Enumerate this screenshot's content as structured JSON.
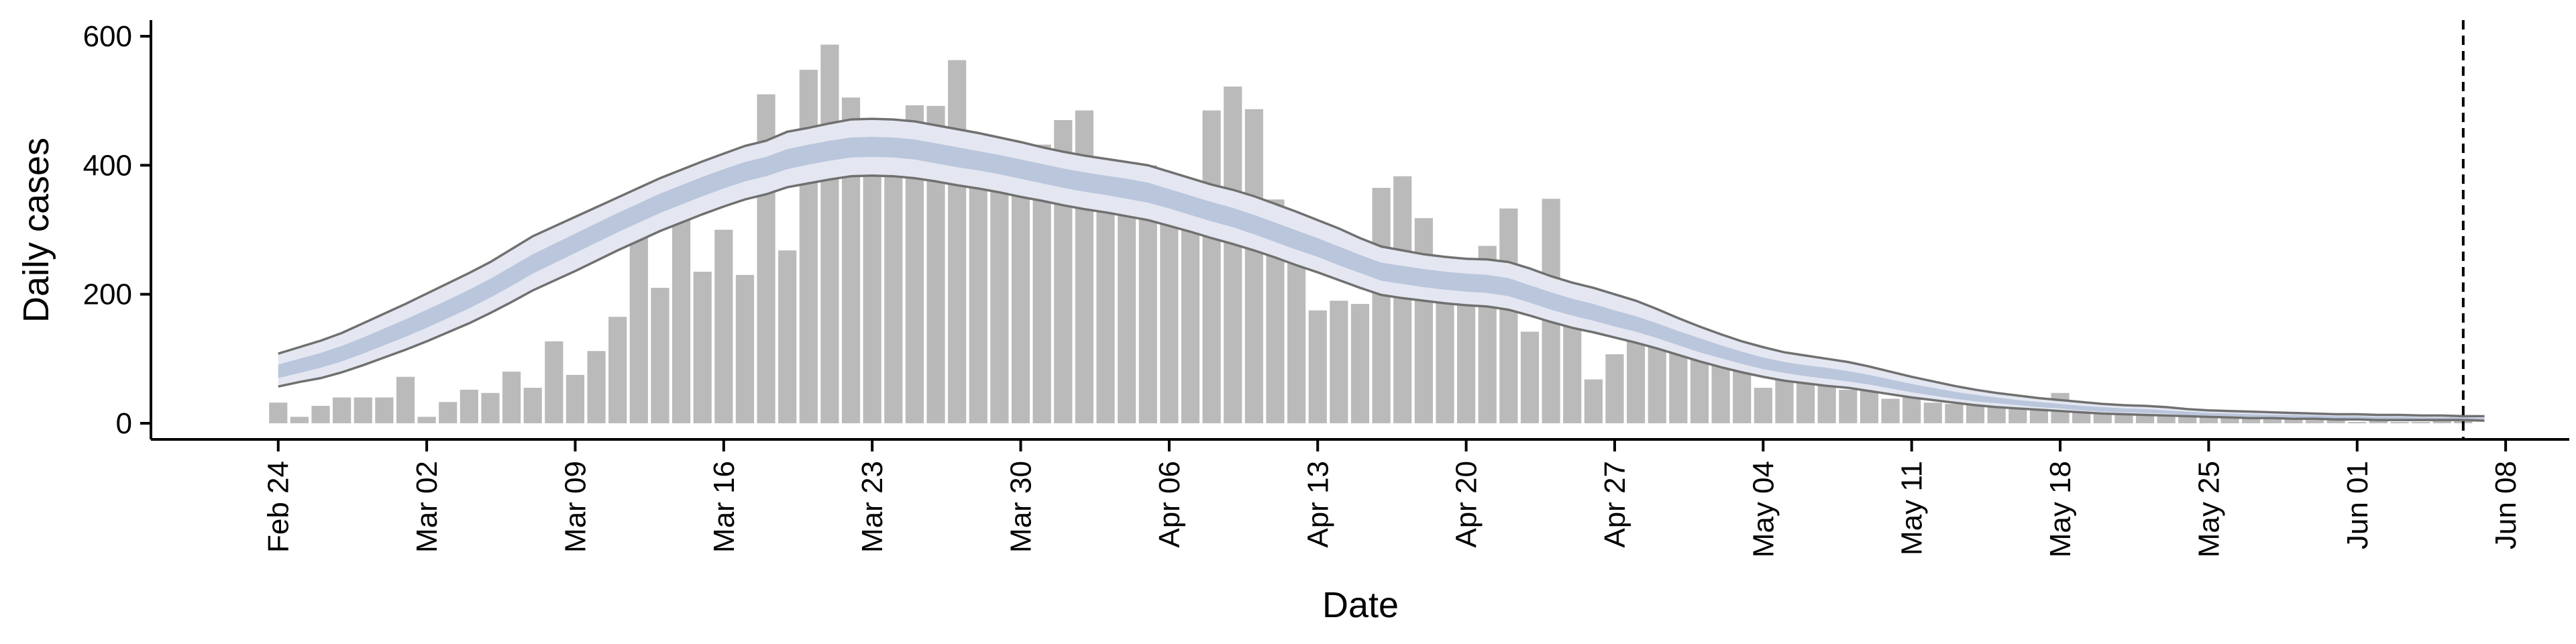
{
  "chart_data": {
    "type": "bar",
    "xlabel": "Date",
    "ylabel": "Daily cases",
    "ylim": [
      -25,
      625
    ],
    "yticks": [
      0,
      200,
      400,
      600
    ],
    "xlim": [
      "2020-02-18",
      "2020-06-11"
    ],
    "x_tick_dates": [
      "2020-02-24",
      "2020-03-02",
      "2020-03-09",
      "2020-03-16",
      "2020-03-23",
      "2020-03-30",
      "2020-04-06",
      "2020-04-13",
      "2020-04-20",
      "2020-04-27",
      "2020-05-04",
      "2020-05-11",
      "2020-05-18",
      "2020-05-25",
      "2020-06-01",
      "2020-06-08"
    ],
    "x_tick_labels": [
      "Feb 24",
      "Mar 02",
      "Mar 09",
      "Mar 16",
      "Mar 23",
      "Mar 30",
      "Apr 06",
      "Apr 13",
      "Apr 20",
      "Apr 27",
      "May 04",
      "May 11",
      "May 18",
      "May 25",
      "Jun 01",
      "Jun 08"
    ],
    "bar_start_date": "2020-02-24",
    "bars": [
      32,
      10,
      27,
      40,
      40,
      40,
      72,
      10,
      33,
      52,
      47,
      80,
      55,
      127,
      75,
      112,
      165,
      360,
      210,
      340,
      235,
      300,
      230,
      510,
      268,
      548,
      587,
      505,
      385,
      442,
      493,
      492,
      563,
      432,
      428,
      365,
      432,
      470,
      485,
      335,
      360,
      400,
      362,
      337,
      485,
      522,
      487,
      347,
      307,
      175,
      190,
      185,
      365,
      383,
      318,
      242,
      192,
      275,
      333,
      142,
      348,
      160,
      68,
      107,
      130,
      118,
      133,
      138,
      127,
      95,
      55,
      77,
      73,
      62,
      52,
      50,
      38,
      40,
      32,
      30,
      43,
      38,
      22,
      20,
      47,
      33,
      15,
      23,
      12,
      17,
      12,
      12,
      12,
      12,
      8,
      12,
      5,
      8,
      2,
      8,
      2,
      2,
      5,
      8
    ],
    "model_series": [
      {
        "outer_upper": [
          108,
          118,
          128,
          140,
          155,
          170,
          185,
          201,
          217,
          233,
          250,
          270,
          290,
          305,
          320,
          335,
          350,
          365,
          380,
          393,
          406,
          418,
          430,
          438,
          452,
          458,
          465,
          471,
          472,
          471,
          468,
          462,
          456,
          450,
          443,
          436,
          428,
          421,
          415,
          410,
          405,
          400,
          390,
          380,
          370,
          362,
          352,
          340,
          328,
          315,
          302,
          287,
          274,
          268,
          262,
          258,
          255,
          254,
          250,
          240,
          228,
          218,
          210,
          200,
          190,
          177,
          163,
          150,
          138,
          127,
          118,
          110,
          105,
          100,
          95,
          88,
          80,
          72,
          65,
          58,
          52,
          47,
          43,
          39,
          36,
          33,
          30,
          28,
          27,
          25,
          22,
          20,
          19,
          18,
          17,
          16,
          15,
          14,
          14,
          13,
          13,
          12,
          12,
          11,
          11
        ],
        "inner_upper": [
          91,
          100,
          109,
          120,
          133,
          147,
          161,
          176,
          191,
          207,
          224,
          243,
          262,
          278,
          294,
          310,
          326,
          341,
          356,
          369,
          382,
          394,
          405,
          413,
          425,
          432,
          438,
          443,
          444,
          443,
          440,
          434,
          428,
          422,
          416,
          409,
          402,
          395,
          389,
          384,
          379,
          373,
          363,
          353,
          343,
          334,
          323,
          311,
          299,
          287,
          274,
          261,
          249,
          244,
          239,
          235,
          232,
          230,
          225,
          214,
          203,
          193,
          185,
          175,
          166,
          155,
          143,
          132,
          121,
          111,
          102,
          95,
          90,
          86,
          81,
          75,
          68,
          61,
          55,
          49,
          44,
          40,
          36,
          33,
          30,
          27,
          25,
          23,
          22,
          20,
          18,
          16,
          15,
          14,
          13,
          13,
          12,
          11,
          11,
          10,
          10,
          9,
          9,
          9,
          8
        ],
        "inner_lower": [
          70,
          78,
          86,
          96,
          108,
          121,
          134,
          148,
          163,
          178,
          195,
          213,
          232,
          248,
          264,
          280,
          296,
          311,
          326,
          339,
          352,
          364,
          375,
          383,
          394,
          401,
          407,
          412,
          413,
          412,
          409,
          403,
          397,
          392,
          386,
          379,
          372,
          365,
          359,
          354,
          348,
          342,
          333,
          323,
          313,
          304,
          293,
          281,
          269,
          258,
          245,
          233,
          221,
          216,
          211,
          207,
          204,
          202,
          197,
          187,
          176,
          167,
          159,
          150,
          142,
          132,
          121,
          110,
          101,
          92,
          84,
          78,
          73,
          69,
          65,
          60,
          54,
          48,
          43,
          38,
          34,
          31,
          28,
          25,
          23,
          20,
          18,
          17,
          16,
          15,
          13,
          12,
          11,
          10,
          9,
          9,
          8,
          7,
          7,
          7,
          6,
          6,
          6,
          6,
          5
        ],
        "outer_lower": [
          57,
          64,
          70,
          79,
          90,
          102,
          114,
          127,
          141,
          155,
          171,
          188,
          206,
          221,
          236,
          252,
          268,
          283,
          298,
          311,
          324,
          336,
          347,
          355,
          366,
          372,
          378,
          383,
          384,
          383,
          380,
          375,
          369,
          364,
          358,
          351,
          345,
          338,
          332,
          327,
          321,
          315,
          306,
          297,
          287,
          278,
          268,
          257,
          245,
          234,
          222,
          210,
          199,
          194,
          190,
          186,
          183,
          181,
          176,
          167,
          157,
          148,
          141,
          133,
          125,
          116,
          106,
          96,
          87,
          79,
          72,
          66,
          62,
          58,
          55,
          50,
          45,
          40,
          36,
          32,
          28,
          25,
          23,
          21,
          19,
          17,
          15,
          14,
          13,
          12,
          11,
          10,
          9,
          8,
          8,
          7,
          7,
          6,
          6,
          5,
          5,
          5,
          5,
          5,
          4
        ]
      }
    ],
    "vline_date": "2020-06-06",
    "grid": false,
    "colors": {
      "bars": "#bababa",
      "outer_band": "#e4e7f1",
      "inner_band": "#b3bfd8",
      "band_edge": "#707070",
      "axis": "#000000",
      "vline": "#000000"
    }
  }
}
